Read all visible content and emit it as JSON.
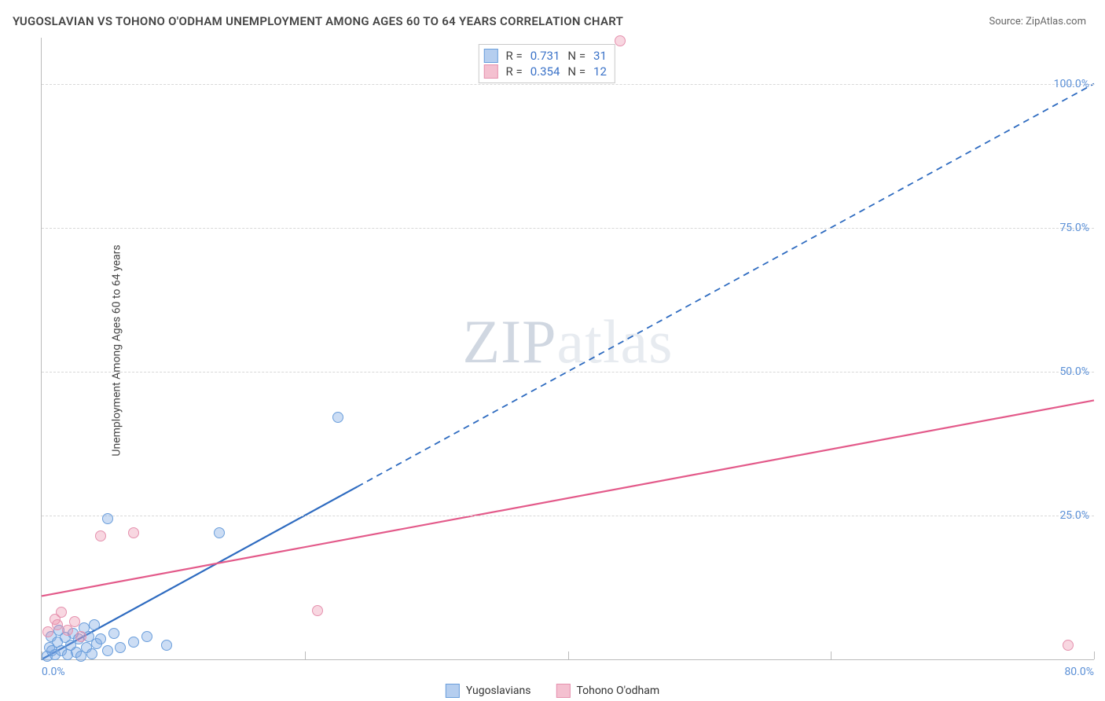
{
  "title": "YUGOSLAVIAN VS TOHONO O'ODHAM UNEMPLOYMENT AMONG AGES 60 TO 64 YEARS CORRELATION CHART",
  "source": "Source: ZipAtlas.com",
  "ylabel": "Unemployment Among Ages 60 to 64 years",
  "watermark_a": "ZIP",
  "watermark_b": "atlas",
  "chart": {
    "type": "scatter-with-regression",
    "xlim": [
      0,
      80
    ],
    "ylim": [
      0,
      108
    ],
    "x_ticks": [
      0,
      20,
      40,
      60,
      80
    ],
    "x_tick_labels": [
      "0.0%",
      "",
      "",
      "",
      "80.0%"
    ],
    "y_ticks": [
      25,
      50,
      75,
      100
    ],
    "y_tick_labels": [
      "25.0%",
      "50.0%",
      "75.0%",
      "100.0%"
    ],
    "grid_color": "#d8d8d8",
    "axis_color": "#bbbbbb",
    "background_color": "#ffffff",
    "tick_label_color": "#5a8fd6",
    "tick_fontsize": 14,
    "title_fontsize": 15,
    "title_color": "#444444",
    "series": [
      {
        "name": "Yugoslavians",
        "color_fill": "rgba(120,165,225,0.38)",
        "color_stroke": "#6a9edb",
        "marker_radius": 7,
        "trend_color": "#2e6bc0",
        "trend_solid_xrange": [
          0,
          24
        ],
        "trend_dashed": true,
        "trend_y_at_x0": 0,
        "trend_y_at_x80": 100,
        "R": 0.731,
        "N": 31,
        "points": [
          [
            0.4,
            0.5
          ],
          [
            0.6,
            2.0
          ],
          [
            0.7,
            4.0
          ],
          [
            0.8,
            1.5
          ],
          [
            1.0,
            0.8
          ],
          [
            1.2,
            3.0
          ],
          [
            1.3,
            5.0
          ],
          [
            1.5,
            1.5
          ],
          [
            1.8,
            3.8
          ],
          [
            2.0,
            0.8
          ],
          [
            2.2,
            2.5
          ],
          [
            2.4,
            4.5
          ],
          [
            2.6,
            1.2
          ],
          [
            2.8,
            3.5
          ],
          [
            3.0,
            0.5
          ],
          [
            3.2,
            5.5
          ],
          [
            3.4,
            2.0
          ],
          [
            3.6,
            4.0
          ],
          [
            3.8,
            1.0
          ],
          [
            4.0,
            6.0
          ],
          [
            4.2,
            2.8
          ],
          [
            4.5,
            3.5
          ],
          [
            5.0,
            1.5
          ],
          [
            5.5,
            4.5
          ],
          [
            6.0,
            2.0
          ],
          [
            7.0,
            3.0
          ],
          [
            8.0,
            4.0
          ],
          [
            9.5,
            2.5
          ],
          [
            5.0,
            24.5
          ],
          [
            13.5,
            22.0
          ],
          [
            22.5,
            42.0
          ]
        ]
      },
      {
        "name": "Tohono O'odham",
        "color_fill": "rgba(235,140,170,0.35)",
        "color_stroke": "#e591ae",
        "marker_radius": 7,
        "trend_color": "#e35a8a",
        "trend_solid_xrange": [
          0,
          80
        ],
        "trend_dashed": false,
        "trend_y_at_x0": 11,
        "trend_y_at_x80": 45,
        "R": 0.354,
        "N": 12,
        "points": [
          [
            0.5,
            4.8
          ],
          [
            1.0,
            7.0
          ],
          [
            1.2,
            6.0
          ],
          [
            1.5,
            8.2
          ],
          [
            2.0,
            5.0
          ],
          [
            2.5,
            6.5
          ],
          [
            3.0,
            4.0
          ],
          [
            4.5,
            21.5
          ],
          [
            7.0,
            22.0
          ],
          [
            21.0,
            8.5
          ],
          [
            44.0,
            107.5
          ],
          [
            78.0,
            2.5
          ]
        ]
      }
    ]
  },
  "legend_top": {
    "rows": [
      {
        "swatch_fill": "rgba(120,165,225,0.55)",
        "swatch_border": "#6a9edb",
        "R_label": "R =",
        "R": "0.731",
        "N_label": "N =",
        "N": "31"
      },
      {
        "swatch_fill": "rgba(235,140,170,0.55)",
        "swatch_border": "#e591ae",
        "R_label": "R =",
        "R": "0.354",
        "N_label": "N =",
        "N": "12"
      }
    ]
  },
  "legend_bottom": {
    "items": [
      {
        "swatch_fill": "rgba(120,165,225,0.55)",
        "swatch_border": "#6a9edb",
        "label": "Yugoslavians"
      },
      {
        "swatch_fill": "rgba(235,140,170,0.55)",
        "swatch_border": "#e591ae",
        "label": "Tohono O'odham"
      }
    ]
  }
}
